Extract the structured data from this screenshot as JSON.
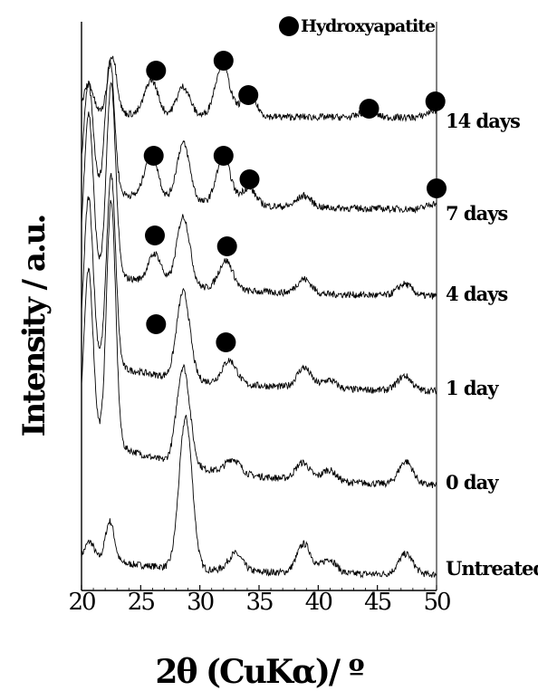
{
  "chart_data": {
    "type": "line",
    "xlabel": "2θ (CuKα)/ º",
    "ylabel": "Intensity / a.u.",
    "xlim": [
      20,
      50
    ],
    "x_ticks": [
      "20",
      "25",
      "30",
      "35",
      "40",
      "45",
      "50"
    ],
    "legend": {
      "marker": "filled-circle",
      "label": "Hydroxyapatite",
      "position": "top-right"
    },
    "grid": false,
    "series": [
      {
        "name": "Untreated",
        "peaks": [
          [
            20.7,
            0.03
          ],
          [
            22.4,
            0.07
          ],
          [
            28.8,
            0.26
          ],
          [
            33.0,
            0.03
          ],
          [
            38.8,
            0.05
          ],
          [
            40.9,
            0.025
          ],
          [
            47.4,
            0.035
          ]
        ],
        "markers": []
      },
      {
        "name": "0 day",
        "peaks": [
          [
            20.6,
            0.28
          ],
          [
            22.5,
            0.42
          ],
          [
            28.6,
            0.17
          ],
          [
            32.8,
            0.025
          ],
          [
            38.7,
            0.03
          ],
          [
            40.9,
            0.02
          ],
          [
            47.4,
            0.04
          ]
        ],
        "markers": []
      },
      {
        "name": "1 day",
        "peaks": [
          [
            20.6,
            0.28
          ],
          [
            22.5,
            0.33
          ],
          [
            28.6,
            0.15
          ],
          [
            32.5,
            0.04
          ],
          [
            38.8,
            0.035
          ],
          [
            40.9,
            0.015
          ],
          [
            47.3,
            0.025
          ]
        ],
        "markers": [
          26.3,
          32.2
        ]
      },
      {
        "name": "4 days",
        "peaks": [
          [
            20.6,
            0.27
          ],
          [
            22.5,
            0.33
          ],
          [
            26.2,
            0.05
          ],
          [
            28.6,
            0.12
          ],
          [
            32.2,
            0.05
          ],
          [
            38.8,
            0.025
          ],
          [
            47.3,
            0.02
          ]
        ],
        "markers": [
          26.2,
          32.3
        ]
      },
      {
        "name": "7 days",
        "peaks": [
          [
            20.6,
            0.18
          ],
          [
            22.4,
            0.23
          ],
          [
            25.9,
            0.08
          ],
          [
            28.6,
            0.1
          ],
          [
            32.0,
            0.08
          ],
          [
            34.1,
            0.03
          ],
          [
            38.8,
            0.02
          ],
          [
            49.8,
            0.01
          ]
        ],
        "markers": [
          26.1,
          32.0,
          34.2,
          50.0
        ]
      },
      {
        "name": "14 days",
        "peaks": [
          [
            20.6,
            0.05
          ],
          [
            22.6,
            0.1
          ],
          [
            25.9,
            0.06
          ],
          [
            28.6,
            0.05
          ],
          [
            31.9,
            0.09
          ],
          [
            34.1,
            0.04
          ],
          [
            44.2,
            0.012
          ],
          [
            49.8,
            0.012
          ]
        ],
        "markers": [
          26.3,
          32.0,
          34.1,
          44.3,
          49.9
        ]
      }
    ]
  }
}
